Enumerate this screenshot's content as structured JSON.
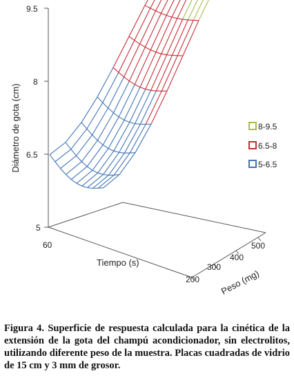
{
  "chart_data": {
    "type": "surface3d",
    "z_axis": {
      "label": "Diámetro de gota (cm)",
      "ticks": [
        "5",
        "6.5",
        "8",
        "9.5"
      ],
      "range": [
        5,
        9.5
      ]
    },
    "x_axis": {
      "label": "Tiempo (s)",
      "ticks": [
        "60"
      ]
    },
    "y_axis": {
      "label": "Peso (mg)",
      "ticks": [
        "200",
        "300",
        "400",
        "500"
      ],
      "range": [
        200,
        500
      ]
    },
    "legend": {
      "position": "right",
      "entries": [
        {
          "label": "8-9.5",
          "color": "#a6bd4e"
        },
        {
          "label": "6.5-8",
          "color": "#c62b35"
        },
        {
          "label": "5-6.5",
          "color": "#3f73b8"
        }
      ]
    },
    "surface": {
      "low_corner": 5.5,
      "high_corner": 9.3,
      "grid_lines": 10
    }
  },
  "caption": {
    "label": "Figura 4.",
    "text": " Superficie de respuesta calculada para la cinética de la extensión de la gota del champú acondicionador, sin electrolitos, utilizando diferente peso de la muestra. Placas cuadradas de vidrio de 15 cm y 3 mm de grosor."
  }
}
